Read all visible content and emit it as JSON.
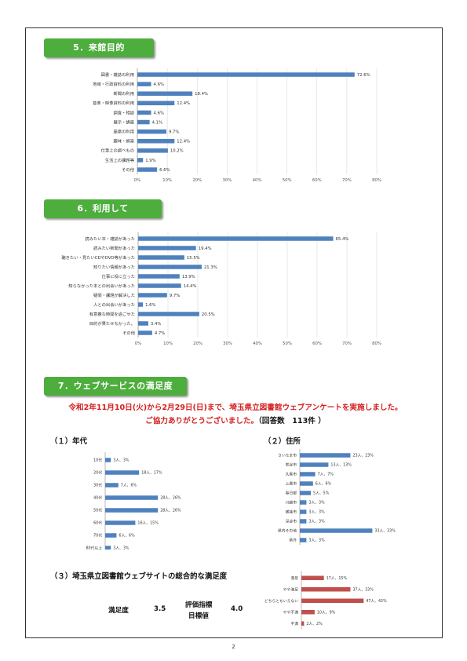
{
  "page_number": "2",
  "sections": {
    "s5": {
      "title": "5．来館目的"
    },
    "s6": {
      "title": "6．利用して"
    },
    "s7": {
      "title": "7．ウェブサービスの満足度"
    }
  },
  "notice": {
    "line1": "令和2年11月10日(火)から2月29日(日)まで、埼玉県立図書館ウェブアンケートを実施しました。",
    "line2": "ご協力ありがとうございました。",
    "count": "（回答数　113件 ）"
  },
  "sub": {
    "age": "（１）年代",
    "address": "（２）住所",
    "overall": "（３）埼玉県立図書館ウェブサイトの総合的な満足度"
  },
  "score": {
    "label_satisfaction": "満足度",
    "value_satisfaction": "3.5",
    "label_index_1": "評価指標",
    "label_index_2": "目標値",
    "value_target": "4.0"
  },
  "colors": {
    "blue": "#4f81bd",
    "red": "#c0504d",
    "green": "#4dad3d",
    "notice": "#d42020"
  },
  "chart_data": [
    {
      "id": "purpose",
      "type": "bar",
      "orientation": "horizontal",
      "categories": [
        "図書・雑誌の利用",
        "地域・行政資料の利用",
        "新聞の利用",
        "音楽・映像資料の利用",
        "調査・相談",
        "展示・講座",
        "座席の利用",
        "趣味・娯楽",
        "仕事上の調べもの",
        "生活上の課題等",
        "その他"
      ],
      "values": [
        72.6,
        4.6,
        18.4,
        12.4,
        4.6,
        4.1,
        9.7,
        12.4,
        10.2,
        1.9,
        6.6
      ],
      "value_labels": [
        "72.6%",
        "4.6%",
        "18.4%",
        "12.4%",
        "4.6%",
        "4.1%",
        "9.7%",
        "12.4%",
        "10.2%",
        "1.9%",
        "6.6%"
      ],
      "xlim": [
        0,
        80
      ],
      "ticks": [
        "0%",
        "10%",
        "20%",
        "30%",
        "40%",
        "50%",
        "60%",
        "70%",
        "80%"
      ]
    },
    {
      "id": "usage",
      "type": "bar",
      "orientation": "horizontal",
      "categories": [
        "読みたい本・雑誌があった",
        "読みたい新聞があった",
        "聴きたい・見たいCDやDVD等があった",
        "知りたい情報があった",
        "仕事に役に立った",
        "知らなかった本との出会いがあった",
        "疑問・課題が解決した",
        "人との出会いがあった",
        "有意義な時間を過ごせた",
        "目的が果たせなかった。",
        "その他"
      ],
      "values": [
        65.4,
        19.4,
        15.5,
        21.3,
        13.9,
        14.4,
        9.7,
        1.6,
        20.5,
        3.4,
        4.7
      ],
      "value_labels": [
        "65.4%",
        "19.4%",
        "15.5%",
        "21.3%",
        "13.9%",
        "14.4%",
        "9.7%",
        "1.6%",
        "20.5%",
        "3.4%",
        "4.7%"
      ],
      "xlim": [
        0,
        80
      ],
      "ticks": [
        "0%",
        "10%",
        "20%",
        "30%",
        "40%",
        "50%",
        "60%",
        "70%",
        "80%"
      ]
    },
    {
      "id": "age",
      "type": "bar",
      "orientation": "horizontal",
      "categories": [
        "10代",
        "20代",
        "30代",
        "40代",
        "50代",
        "60代",
        "70代",
        "80代以上"
      ],
      "values": [
        3,
        18,
        7,
        28,
        28,
        16,
        6,
        3
      ],
      "value_labels": [
        "3人、3%",
        "18人、17%",
        "7人、6%",
        "28人、26%",
        "28人、26%",
        "16人、15%",
        "6人、6%",
        "3人、3%"
      ],
      "xlim": [
        0,
        60
      ]
    },
    {
      "id": "address",
      "type": "bar",
      "orientation": "horizontal",
      "categories": [
        "さいたま市",
        "熊谷市",
        "久喜市",
        "上尾市",
        "春日部",
        "川越市",
        "飯能市",
        "深谷市",
        "県内その他",
        "県外"
      ],
      "values": [
        23,
        13,
        7,
        6,
        5,
        3,
        3,
        3,
        33,
        3
      ],
      "value_labels": [
        "23人、23%",
        "13人、13%",
        "7人、7%",
        "6人、6%",
        "5人、5%",
        "3人、3%",
        "3人、3%",
        "3人、3%",
        "33人、33%",
        "3人、3%"
      ],
      "xlim": [
        0,
        40
      ]
    },
    {
      "id": "overall",
      "type": "bar",
      "orientation": "horizontal",
      "categories": [
        "満足",
        "やや満足",
        "どちらともいえない",
        "やや不満",
        "不満"
      ],
      "values": [
        17,
        37,
        47,
        10,
        2
      ],
      "value_labels": [
        "17人、15%",
        "37人、33%",
        "47人、42%",
        "10人、9%",
        "2人、2%"
      ],
      "xlim": [
        0,
        80
      ]
    }
  ]
}
